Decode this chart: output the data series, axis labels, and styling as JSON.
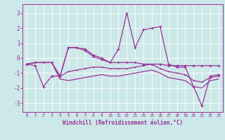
{
  "xlabel": "Windchill (Refroidissement éolien,°C)",
  "background_color": "#cce8e8",
  "line_color": "#993399",
  "grid_color": "#aacccc",
  "xlim": [
    -0.5,
    23.5
  ],
  "ylim": [
    -3.6,
    3.6
  ],
  "xticks": [
    0,
    1,
    2,
    3,
    4,
    5,
    6,
    7,
    8,
    9,
    10,
    11,
    12,
    13,
    14,
    15,
    16,
    17,
    18,
    19,
    20,
    21,
    22,
    23
  ],
  "yticks": [
    -3,
    -2,
    -1,
    0,
    1,
    2,
    3
  ],
  "series1": [
    -0.4,
    -0.5,
    -1.9,
    -1.2,
    -1.2,
    0.7,
    0.7,
    0.6,
    0.2,
    0.0,
    -0.3,
    0.6,
    3.0,
    0.7,
    1.9,
    2.0,
    2.1,
    -0.4,
    -0.6,
    -0.6,
    -1.9,
    -3.2,
    -1.2,
    -1.1
  ],
  "series2": [
    -0.4,
    -0.3,
    -0.3,
    -0.3,
    -1.2,
    0.7,
    0.7,
    0.5,
    0.1,
    -0.1,
    -0.3,
    -0.3,
    -0.3,
    -0.3,
    -0.4,
    -0.4,
    -0.4,
    -0.5,
    -0.5,
    -0.5,
    -0.5,
    -0.5,
    -0.5,
    -0.5
  ],
  "series3": [
    -0.4,
    -0.3,
    -0.3,
    -0.3,
    -1.2,
    -0.9,
    -0.8,
    -0.7,
    -0.6,
    -0.6,
    -0.7,
    -0.7,
    -0.7,
    -0.6,
    -0.5,
    -0.4,
    -0.7,
    -0.9,
    -1.0,
    -1.1,
    -1.5,
    -1.6,
    -1.3,
    -1.2
  ],
  "series4": [
    -0.4,
    -0.3,
    -0.3,
    -0.3,
    -1.4,
    -1.5,
    -1.4,
    -1.3,
    -1.2,
    -1.1,
    -1.2,
    -1.2,
    -1.1,
    -1.0,
    -0.9,
    -0.8,
    -1.0,
    -1.3,
    -1.4,
    -1.5,
    -1.9,
    -2.0,
    -1.5,
    -1.4
  ]
}
